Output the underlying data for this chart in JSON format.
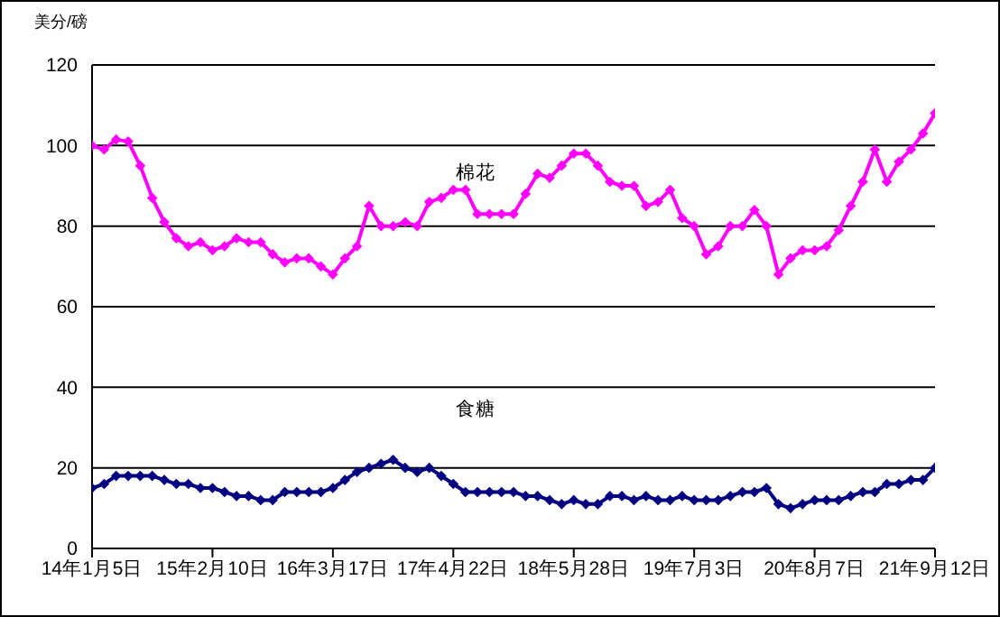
{
  "chart_data": {
    "type": "line",
    "ylabel": "美分/磅",
    "categories": [
      "14年1月5日",
      null,
      null,
      null,
      null,
      null,
      null,
      null,
      null,
      null,
      "15年2月10日",
      null,
      null,
      null,
      null,
      null,
      null,
      null,
      null,
      null,
      "16年3月17日",
      null,
      null,
      null,
      null,
      null,
      null,
      null,
      null,
      null,
      "17年4月22日",
      null,
      null,
      null,
      null,
      null,
      null,
      null,
      null,
      null,
      "18年5月28日",
      null,
      null,
      null,
      null,
      null,
      null,
      null,
      null,
      null,
      "19年7月3日",
      null,
      null,
      null,
      null,
      null,
      null,
      null,
      null,
      null,
      "20年8月7日",
      null,
      null,
      null,
      null,
      null,
      null,
      null,
      null,
      null,
      "21年9月12日"
    ],
    "series": [
      {
        "name": "棉花",
        "color": "#ff00ff",
        "values": [
          100,
          99,
          101.5,
          101,
          95,
          87,
          81,
          77,
          75,
          76,
          74,
          75,
          77,
          76,
          76,
          73,
          71,
          72,
          72,
          70,
          68,
          72,
          75,
          85,
          80,
          80,
          81,
          80,
          86,
          87,
          89,
          89,
          83,
          83,
          83,
          83,
          88,
          93,
          92,
          95,
          98,
          98,
          95,
          91,
          90,
          90,
          85,
          86,
          89,
          82,
          80,
          73,
          75,
          80,
          80,
          84,
          80,
          68,
          72,
          74,
          74,
          75,
          79,
          85,
          91,
          99,
          91,
          96,
          99,
          103,
          108
        ]
      },
      {
        "name": "食糖",
        "color": "#000080",
        "values": [
          15,
          16,
          18,
          18,
          18,
          18,
          17,
          16,
          16,
          15,
          15,
          14,
          13,
          13,
          12,
          12,
          14,
          14,
          14,
          14,
          15,
          17,
          19,
          20,
          21,
          22,
          20,
          19,
          20,
          18,
          16,
          14,
          14,
          14,
          14,
          14,
          13,
          13,
          12,
          11,
          12,
          11,
          11,
          13,
          13,
          12,
          13,
          12,
          12,
          13,
          12,
          12,
          12,
          13,
          14,
          14,
          15,
          11,
          10,
          11,
          12,
          12,
          12,
          13,
          14,
          14,
          16,
          16,
          17,
          17,
          20
        ]
      }
    ],
    "ylim": [
      0,
      120
    ],
    "yticks": [
      0,
      20,
      40,
      60,
      80,
      100,
      120
    ],
    "grid": "y",
    "marker": "diamond",
    "line_style": "solid"
  }
}
